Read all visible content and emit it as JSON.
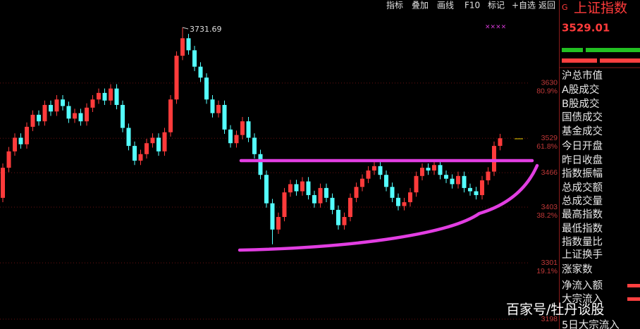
{
  "toolbar": [
    "指标",
    "叠加",
    "画线",
    "F10",
    "标记",
    "+自选",
    "返回"
  ],
  "panel": {
    "code_mark": "G",
    "name": "上证指数",
    "price": "3529.01",
    "fields": [
      "沪总市值",
      "A股成交",
      "B股成交",
      "国债成交",
      "基金成交",
      "今日开盘",
      "昨日收盘",
      "指数振幅",
      "总成交额",
      "总成交量",
      "最高指数",
      "最低指数",
      "指数量比",
      "上证换手",
      "涨家数",
      "净流入额",
      "大宗流入",
      "5日大宗流入"
    ]
  },
  "watermark": "百家号/牡丹谈股",
  "chart_data": {
    "type": "candlestick",
    "up_color": "#ff3b3b",
    "down_color": "#54ffff",
    "grid": true,
    "ylim": [
      3180,
      3782
    ],
    "yticks": [
      3630,
      3529,
      3466,
      3403,
      3301,
      3198
    ],
    "fib_labels": [
      {
        "value": 3630,
        "label": "80.9%"
      },
      {
        "value": 3529,
        "label": "61.8%"
      },
      {
        "value": 3403,
        "label": "38.2%"
      },
      {
        "value": 3301,
        "label": "19.1%"
      }
    ],
    "annotation": {
      "value": 3731.69,
      "label": "3731.69"
    },
    "open": [
      3420,
      3475,
      3505,
      3530,
      3518,
      3550,
      3572,
      3560,
      3590,
      3578,
      3600,
      3588,
      3565,
      3575,
      3560,
      3585,
      3600,
      3612,
      3598,
      3620,
      3590,
      3548,
      3515,
      3488,
      3500,
      3520,
      3530,
      3505,
      3540,
      3600,
      3680,
      3712,
      3690,
      3660,
      3640,
      3600,
      3575,
      3590,
      3545,
      3520,
      3535,
      3560,
      3530,
      3500,
      3462,
      3410,
      3362,
      3385,
      3430,
      3445,
      3432,
      3450,
      3425,
      3410,
      3438,
      3420,
      3398,
      3370,
      3385,
      3420,
      3440,
      3455,
      3470,
      3478,
      3462,
      3440,
      3420,
      3405,
      3412,
      3430,
      3460,
      3475,
      3470,
      3480,
      3462,
      3455,
      3445,
      3460,
      3438,
      3432,
      3425,
      3452,
      3468,
      3515
    ],
    "high": [
      3483,
      3513,
      3538,
      3538,
      3558,
      3580,
      3580,
      3598,
      3598,
      3608,
      3608,
      3596,
      3583,
      3583,
      3593,
      3608,
      3620,
      3620,
      3628,
      3628,
      3598,
      3556,
      3523,
      3508,
      3528,
      3538,
      3538,
      3548,
      3608,
      3688,
      3731.69,
      3720,
      3698,
      3668,
      3648,
      3608,
      3598,
      3598,
      3553,
      3543,
      3568,
      3568,
      3538,
      3508,
      3470,
      3418,
      3393,
      3438,
      3453,
      3453,
      3458,
      3458,
      3433,
      3446,
      3446,
      3428,
      3406,
      3393,
      3428,
      3448,
      3463,
      3478,
      3486,
      3486,
      3470,
      3448,
      3428,
      3420,
      3438,
      3468,
      3483,
      3483,
      3488,
      3488,
      3470,
      3463,
      3468,
      3468,
      3446,
      3440,
      3460,
      3476,
      3523,
      3537
    ],
    "low": [
      3412,
      3467,
      3497,
      3510,
      3510,
      3542,
      3552,
      3552,
      3570,
      3570,
      3580,
      3557,
      3557,
      3552,
      3552,
      3577,
      3592,
      3590,
      3590,
      3582,
      3540,
      3507,
      3480,
      3480,
      3492,
      3512,
      3497,
      3497,
      3532,
      3592,
      3672,
      3682,
      3652,
      3632,
      3592,
      3567,
      3567,
      3537,
      3512,
      3512,
      3527,
      3522,
      3492,
      3454,
      3402,
      3335,
      3354,
      3377,
      3422,
      3424,
      3424,
      3417,
      3402,
      3402,
      3412,
      3390,
      3362,
      3362,
      3377,
      3412,
      3432,
      3447,
      3462,
      3454,
      3432,
      3412,
      3397,
      3397,
      3404,
      3422,
      3452,
      3462,
      3462,
      3454,
      3447,
      3437,
      3437,
      3430,
      3424,
      3417,
      3417,
      3444,
      3460,
      3507
    ],
    "close": [
      3475,
      3505,
      3530,
      3518,
      3550,
      3572,
      3560,
      3590,
      3578,
      3600,
      3588,
      3565,
      3575,
      3560,
      3585,
      3600,
      3612,
      3598,
      3620,
      3590,
      3548,
      3515,
      3488,
      3500,
      3520,
      3530,
      3505,
      3540,
      3600,
      3680,
      3712,
      3690,
      3660,
      3640,
      3600,
      3575,
      3590,
      3545,
      3520,
      3535,
      3560,
      3530,
      3500,
      3462,
      3410,
      3362,
      3385,
      3430,
      3445,
      3432,
      3450,
      3425,
      3410,
      3438,
      3420,
      3398,
      3370,
      3385,
      3420,
      3440,
      3455,
      3470,
      3478,
      3462,
      3440,
      3420,
      3405,
      3412,
      3430,
      3460,
      3475,
      3470,
      3480,
      3462,
      3455,
      3445,
      3460,
      3438,
      3432,
      3425,
      3452,
      3468,
      3515,
      3529.01
    ]
  }
}
